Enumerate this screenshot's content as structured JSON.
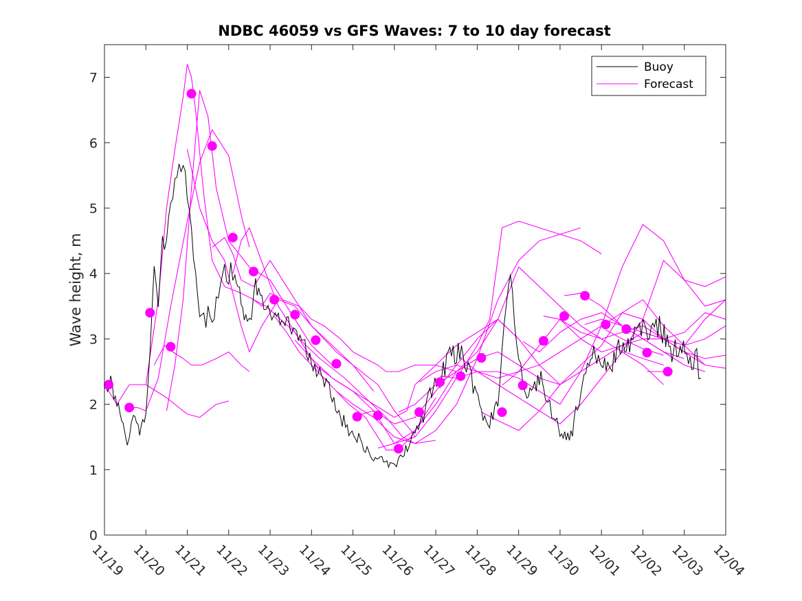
{
  "chart_data": {
    "type": "line",
    "title": "NDBC 46059 vs GFS Waves: 7 to 10 day forecast",
    "xlabel": "",
    "ylabel": "Wave height, m",
    "x_unit": "days since 11/19",
    "xlim": [
      0,
      15
    ],
    "ylim": [
      0,
      7.5
    ],
    "y_ticks": [
      0,
      1,
      2,
      3,
      4,
      5,
      6,
      7
    ],
    "x_tick_labels": [
      "11/19",
      "11/20",
      "11/21",
      "11/22",
      "11/23",
      "11/24",
      "11/25",
      "11/26",
      "11/27",
      "11/28",
      "11/29",
      "11/30",
      "12/01",
      "12/02",
      "12/03",
      "12/04"
    ],
    "grid": false,
    "legend": {
      "position": "top-right",
      "entries": [
        {
          "label": "Buoy",
          "color": "#000000"
        },
        {
          "label": "Forecast",
          "color": "#ff00ff"
        }
      ]
    },
    "buoy": {
      "name": "Buoy",
      "color": "#000000",
      "x": [
        0,
        0.15,
        0.3,
        0.45,
        0.55,
        0.6,
        0.7,
        0.85,
        1.0,
        1.05,
        1.15,
        1.2,
        1.3,
        1.4,
        1.5,
        1.6,
        1.7,
        1.8,
        1.9,
        2.0,
        2.1,
        2.15,
        2.25,
        2.35,
        2.45,
        2.55,
        2.65,
        2.75,
        2.85,
        2.95,
        3.05,
        3.15,
        3.3,
        3.45,
        3.55,
        3.65,
        3.8,
        3.9,
        4.0,
        4.2,
        4.4,
        4.6,
        4.8,
        5.0,
        5.2,
        5.35,
        5.5,
        5.7,
        5.9,
        6.1,
        6.3,
        6.5,
        6.7,
        6.9,
        7.0,
        7.1,
        7.2,
        7.35,
        7.5,
        7.7,
        7.9,
        8.1,
        8.3,
        8.5,
        8.7,
        8.9,
        9.1,
        9.3,
        9.5,
        9.55,
        9.6,
        9.7,
        9.8,
        9.9,
        10.0,
        10.1,
        10.2,
        10.35,
        10.5,
        10.65,
        10.75,
        10.85,
        11.0,
        11.15,
        11.3,
        11.5,
        11.7,
        11.85,
        12.0,
        12.15,
        12.3,
        12.45,
        12.6,
        12.8,
        13.0,
        13.2,
        13.4,
        13.55,
        13.7,
        13.9,
        14.1,
        14.3,
        14.4
      ],
      "y": [
        2.4,
        2.3,
        2.1,
        1.7,
        1.4,
        1.5,
        1.8,
        1.6,
        1.9,
        2.3,
        3.3,
        4.0,
        3.6,
        4.4,
        4.4,
        5.1,
        5.3,
        5.7,
        5.6,
        5.2,
        4.6,
        4.2,
        3.6,
        3.4,
        3.3,
        3.4,
        3.3,
        3.8,
        4.1,
        3.9,
        4.0,
        3.9,
        3.6,
        3.3,
        3.4,
        3.9,
        3.5,
        3.3,
        3.4,
        3.3,
        3.3,
        3.0,
        3.0,
        2.7,
        2.5,
        2.3,
        2.1,
        1.8,
        1.6,
        1.5,
        1.3,
        1.2,
        1.15,
        1.1,
        1.1,
        1.12,
        1.2,
        1.4,
        1.6,
        1.8,
        2.2,
        2.4,
        2.7,
        2.8,
        2.7,
        2.3,
        1.9,
        1.7,
        2.0,
        2.4,
        2.9,
        3.5,
        4.1,
        3.4,
        2.8,
        2.3,
        2.2,
        2.2,
        2.4,
        2.2,
        2.0,
        1.8,
        1.6,
        1.5,
        1.6,
        2.2,
        2.6,
        2.8,
        2.6,
        2.5,
        2.7,
        2.9,
        2.8,
        3.1,
        3.2,
        3.1,
        3.2,
        3.0,
        2.8,
        2.9,
        2.7,
        2.7,
        2.4
      ]
    },
    "forecast_series": [
      {
        "name": "Forecast",
        "x": [
          0,
          0.3,
          0.6,
          1.0,
          1.5,
          2.0,
          2.3,
          2.7,
          3.0
        ],
        "y": [
          2.3,
          2.0,
          2.3,
          2.3,
          2.1,
          1.85,
          1.8,
          2.0,
          2.05
        ],
        "marker": [
          0.1,
          2.3
        ]
      },
      {
        "name": "Forecast",
        "x": [
          0.5,
          0.8,
          1.0,
          1.3,
          1.6,
          2.0,
          2.3,
          2.6,
          3.0,
          3.3,
          3.5
        ],
        "y": [
          1.95,
          1.95,
          1.9,
          2.4,
          3.5,
          4.8,
          5.7,
          6.2,
          5.8,
          4.9,
          4.4
        ],
        "marker": [
          0.6,
          1.95
        ]
      },
      {
        "name": "Forecast",
        "x": [
          1.0,
          1.3,
          1.5,
          1.7,
          1.9,
          2.0,
          2.1,
          2.2,
          2.4,
          2.6,
          2.9,
          3.3,
          3.9,
          4.6,
          5.2
        ],
        "y": [
          2.3,
          3.6,
          5.0,
          5.9,
          6.7,
          7.2,
          7.0,
          6.5,
          5.2,
          4.2,
          3.8,
          3.7,
          3.5,
          3.1,
          2.5
        ],
        "marker": [
          1.1,
          3.4
        ]
      },
      {
        "name": "Forecast",
        "x": [
          1.2,
          1.45,
          1.65,
          1.9,
          2.1,
          2.35,
          2.7,
          3.0,
          3.3,
          3.5
        ],
        "y": [
          2.6,
          2.9,
          2.8,
          2.7,
          2.6,
          2.6,
          2.7,
          2.8,
          2.6,
          2.5
        ],
        "marker": [
          1.6,
          2.88
        ]
      },
      {
        "name": "Forecast",
        "x": [
          1.5,
          1.7,
          1.9,
          2.1,
          2.3,
          2.5,
          2.7,
          3.0,
          3.5,
          4.0,
          4.5,
          5.0,
          5.5
        ],
        "y": [
          1.9,
          2.6,
          3.6,
          5.3,
          6.8,
          6.4,
          5.3,
          4.5,
          4.1,
          3.9,
          3.4,
          2.9,
          2.6
        ],
        "marker": [
          2.1,
          6.75
        ]
      },
      {
        "name": "Forecast",
        "x": [
          2.0,
          2.3,
          2.6,
          2.9,
          3.1,
          3.3,
          3.5,
          3.8,
          4.2,
          4.6,
          5.0,
          5.5,
          6.0,
          6.5
        ],
        "y": [
          5.9,
          5.0,
          4.5,
          4.2,
          3.7,
          3.2,
          2.8,
          3.2,
          3.6,
          3.5,
          3.2,
          2.9,
          2.6,
          2.2
        ],
        "marker": [
          2.6,
          5.95
        ]
      },
      {
        "name": "Forecast",
        "x": [
          2.6,
          2.9,
          3.1,
          3.3,
          3.6,
          4.0,
          4.5,
          5.0,
          5.6,
          6.1,
          6.6,
          7.0,
          7.4,
          7.5
        ],
        "y": [
          4.4,
          4.55,
          4.3,
          3.9,
          3.8,
          4.2,
          3.7,
          3.2,
          2.8,
          2.55,
          2.3,
          1.9,
          1.6,
          1.5
        ],
        "marker": [
          3.1,
          4.55
        ]
      },
      {
        "name": "Forecast",
        "x": [
          3.1,
          3.3,
          3.5,
          3.7,
          3.9,
          4.2,
          4.7,
          5.2,
          5.8,
          6.3,
          6.8,
          7.2,
          7.5,
          8.0
        ],
        "y": [
          4.0,
          4.5,
          4.7,
          4.35,
          4.0,
          3.5,
          3.0,
          2.7,
          2.4,
          2.1,
          1.8,
          1.5,
          1.4,
          1.45
        ],
        "marker": [
          3.6,
          4.03
        ]
      },
      {
        "name": "Forecast",
        "x": [
          3.6,
          3.8,
          4.0,
          4.3,
          4.7,
          5.0,
          5.3,
          5.7,
          6.0,
          6.3,
          6.6,
          6.8,
          7.1,
          7.5,
          8.0,
          8.5
        ],
        "y": [
          3.6,
          3.5,
          3.7,
          3.6,
          3.5,
          3.3,
          3.2,
          3.0,
          2.8,
          2.7,
          2.6,
          2.5,
          2.5,
          2.6,
          2.6,
          2.5
        ],
        "marker": [
          4.1,
          3.6
        ]
      },
      {
        "name": "Forecast",
        "x": [
          4.1,
          4.4,
          4.7,
          5.0,
          5.3,
          5.6,
          5.9,
          6.1,
          6.3,
          6.5,
          6.8,
          7.1,
          7.4,
          7.7,
          8.0
        ],
        "y": [
          3.35,
          3.1,
          2.8,
          2.6,
          2.4,
          2.2,
          2.0,
          1.9,
          1.8,
          1.6,
          1.3,
          1.3,
          1.5,
          1.8,
          2.1
        ],
        "marker": [
          4.6,
          3.37
        ]
      },
      {
        "name": "Forecast",
        "x": [
          4.6,
          5.0,
          5.5,
          6.0,
          6.5,
          7.0,
          7.3,
          7.5,
          8.0,
          8.5,
          9.0,
          9.5,
          10.0
        ],
        "y": [
          2.98,
          2.7,
          2.4,
          2.2,
          2.0,
          1.8,
          1.9,
          2.3,
          2.6,
          2.9,
          3.1,
          3.3,
          3.0
        ],
        "marker": [
          5.1,
          2.98
        ]
      },
      {
        "name": "Forecast",
        "x": [
          5.1,
          5.5,
          6.0,
          6.5,
          7.0,
          7.5,
          8.0,
          8.5,
          9.0,
          9.5,
          10.0,
          10.5,
          11.0
        ],
        "y": [
          2.6,
          2.4,
          2.2,
          1.9,
          1.7,
          1.8,
          2.2,
          2.6,
          3.0,
          3.3,
          3.0,
          2.6,
          2.3
        ],
        "marker": [
          5.6,
          2.62
        ]
      },
      {
        "name": "Forecast",
        "x": [
          5.6,
          6.0,
          6.5,
          7.0,
          7.5,
          8.0,
          8.5,
          9.0,
          9.5,
          10.0,
          10.5,
          11.0,
          11.5
        ],
        "y": [
          2.2,
          2.0,
          1.8,
          1.5,
          1.4,
          1.6,
          2.0,
          2.7,
          3.6,
          4.2,
          4.5,
          4.6,
          4.7
        ],
        "marker": [
          6.1,
          1.81
        ]
      },
      {
        "name": "Forecast",
        "x": [
          6.1,
          6.5,
          7.0,
          7.5,
          8.0,
          8.5,
          9.0,
          9.3,
          9.6,
          10.0,
          10.5,
          11.0,
          11.5,
          12.0
        ],
        "y": [
          1.83,
          1.9,
          1.4,
          1.5,
          1.9,
          2.4,
          2.9,
          3.3,
          4.7,
          4.8,
          4.7,
          4.6,
          4.5,
          4.3
        ],
        "marker": [
          6.6,
          1.83
        ]
      },
      {
        "name": "Forecast",
        "x": [
          6.6,
          7.0,
          7.5,
          8.0,
          8.5,
          9.0,
          9.5,
          10.0,
          10.5,
          11.0,
          11.5,
          12.0,
          12.5,
          13.0,
          13.5
        ],
        "y": [
          1.33,
          1.4,
          1.6,
          2.0,
          2.5,
          2.8,
          3.3,
          4.1,
          3.8,
          3.5,
          3.2,
          3.0,
          2.8,
          2.6,
          2.3
        ],
        "marker": [
          7.1,
          1.32
        ]
      },
      {
        "name": "Forecast",
        "x": [
          7.1,
          7.5,
          8.0,
          8.5,
          9.0,
          9.5,
          10.0,
          10.5,
          11.0,
          11.5,
          12.0,
          12.5,
          13.0,
          13.5,
          14.0
        ],
        "y": [
          1.88,
          2.0,
          2.3,
          2.5,
          2.7,
          2.8,
          2.6,
          2.4,
          2.3,
          2.5,
          2.7,
          2.9,
          3.0,
          2.8,
          2.7
        ],
        "marker": [
          7.6,
          1.88
        ]
      },
      {
        "name": "Forecast",
        "x": [
          7.6,
          8.0,
          8.5,
          9.0,
          9.5,
          10.0,
          10.5,
          11.0,
          11.5,
          12.0,
          12.5,
          13.0,
          13.5,
          14.0,
          14.5
        ],
        "y": [
          2.34,
          2.5,
          2.6,
          2.5,
          2.4,
          2.5,
          2.6,
          2.8,
          3.0,
          3.2,
          3.4,
          3.3,
          3.0,
          2.8,
          2.6
        ],
        "marker": [
          8.1,
          2.34
        ]
      },
      {
        "name": "Forecast",
        "x": [
          8.1,
          8.5,
          9.0,
          9.5,
          10.0,
          10.5,
          11.0,
          11.5,
          12.0,
          12.5,
          13.0,
          13.5,
          14.0,
          14.5,
          15.0
        ],
        "y": [
          2.43,
          2.4,
          2.5,
          2.5,
          2.4,
          2.2,
          2.0,
          2.5,
          3.2,
          4.1,
          4.75,
          4.5,
          3.9,
          3.8,
          3.95
        ],
        "marker": [
          8.6,
          2.43
        ]
      },
      {
        "name": "Forecast",
        "x": [
          8.6,
          9.0,
          9.5,
          10.0,
          10.5,
          11.0,
          11.5,
          12.0,
          12.5,
          13.0,
          13.5,
          14.0,
          14.5,
          15.0
        ],
        "y": [
          2.71,
          2.5,
          2.3,
          2.1,
          1.9,
          1.7,
          2.0,
          2.4,
          2.8,
          3.3,
          4.2,
          3.9,
          3.5,
          3.6
        ],
        "marker": [
          9.1,
          2.71
        ]
      },
      {
        "name": "Forecast",
        "x": [
          9.1,
          9.5,
          10.0,
          10.5,
          11.0,
          11.5,
          12.0,
          12.5,
          13.0,
          13.5,
          14.0,
          14.5,
          15.0
        ],
        "y": [
          1.88,
          1.75,
          1.6,
          1.9,
          2.3,
          2.6,
          2.9,
          3.4,
          3.6,
          3.2,
          2.9,
          3.3,
          3.6
        ],
        "marker": [
          9.6,
          1.88
        ]
      },
      {
        "name": "Forecast",
        "x": [
          9.6,
          10.0,
          10.5,
          11.0,
          11.5,
          12.0,
          12.5,
          13.0,
          13.5,
          14.0,
          14.5,
          15.0
        ],
        "y": [
          2.29,
          2.5,
          2.9,
          3.3,
          3.0,
          2.8,
          2.9,
          3.1,
          3.0,
          2.8,
          2.7,
          2.75
        ],
        "marker": [
          10.1,
          2.29
        ]
      },
      {
        "name": "Forecast",
        "x": [
          10.1,
          10.5,
          11.0,
          11.5,
          12.0,
          12.5,
          13.0,
          13.5,
          14.0,
          14.5,
          15.0
        ],
        "y": [
          2.96,
          2.8,
          3.1,
          3.3,
          3.4,
          3.2,
          3.0,
          3.0,
          3.1,
          3.4,
          3.3
        ],
        "marker": [
          10.6,
          2.97
        ]
      },
      {
        "name": "Forecast",
        "x": [
          10.6,
          11.0,
          11.5,
          12.0,
          12.5,
          13.0,
          13.5,
          14.0,
          14.5,
          15.0
        ],
        "y": [
          3.35,
          3.3,
          3.1,
          3.0,
          3.1,
          3.2,
          3.0,
          2.9,
          3.0,
          3.2
        ],
        "marker": [
          11.1,
          3.35
        ]
      },
      {
        "name": "Forecast",
        "x": [
          11.1,
          11.5,
          12.0,
          12.5,
          13.0,
          13.5,
          14.0,
          14.5,
          15.0
        ],
        "y": [
          3.66,
          3.7,
          3.5,
          3.2,
          3.1,
          3.0,
          2.9,
          2.6,
          2.55
        ],
        "marker": [
          11.6,
          3.66
        ]
      },
      {
        "name": "Forecast",
        "x": [
          11.6,
          12.0,
          12.5,
          13.0,
          13.5,
          14.0,
          14.5
        ],
        "y": [
          3.22,
          3.3,
          3.2,
          3.0,
          2.8,
          2.6,
          2.5
        ],
        "marker": [
          12.1,
          3.22
        ]
      },
      {
        "name": "Forecast",
        "x": [
          12.1,
          12.5,
          13.0,
          13.5
        ],
        "y": [
          3.14,
          3.0,
          2.85,
          2.75
        ],
        "marker": [
          12.6,
          3.15
        ]
      },
      {
        "name": "Forecast",
        "x": [
          12.6,
          13.0,
          13.5
        ],
        "y": [
          2.79,
          2.7,
          2.6
        ],
        "marker": [
          13.1,
          2.79
        ]
      },
      {
        "name": "Forecast",
        "x": [
          13.1,
          13.5
        ],
        "y": [
          2.5,
          2.5
        ],
        "marker": [
          13.6,
          2.5
        ]
      }
    ]
  }
}
